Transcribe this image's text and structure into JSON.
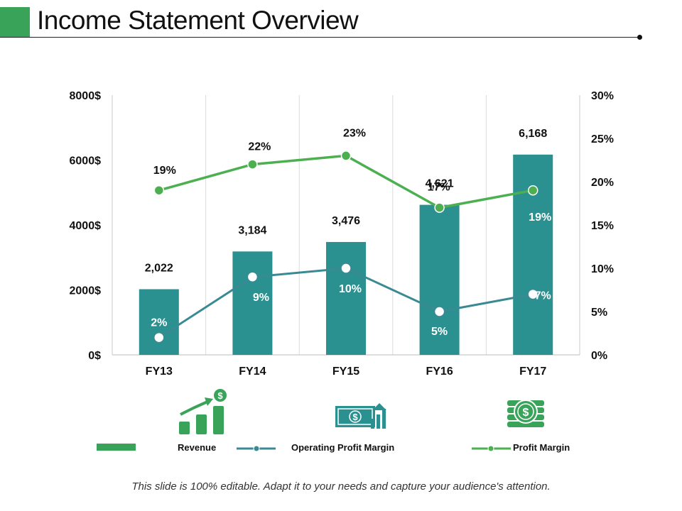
{
  "slide": {
    "title": "Income Statement Overview",
    "footer": "This slide is 100% editable. Adapt it to your needs and capture your audience's attention."
  },
  "colors": {
    "accent_green": "#3aa35a",
    "bar_teal": "#2b9090",
    "operating_line": "#3a8a94",
    "profit_line": "#4caf50"
  },
  "icons": [
    "growth-chart-dollar-icon",
    "dollar-bill-arrow-icon",
    "coin-stack-dollar-icon"
  ],
  "chart_data": {
    "type": "bar",
    "categories": [
      "FY13",
      "FY14",
      "FY15",
      "FY16",
      "FY17"
    ],
    "y_left": {
      "range": [
        0,
        8000
      ],
      "ticks": [
        0,
        2000,
        4000,
        6000,
        8000
      ],
      "tick_labels": [
        "0$",
        "2000$",
        "4000$",
        "6000$",
        "8000$"
      ]
    },
    "y_right": {
      "range": [
        0,
        30
      ],
      "ticks": [
        0,
        5,
        10,
        15,
        20,
        25,
        30
      ],
      "tick_labels": [
        "0%",
        "5%",
        "10%",
        "15%",
        "20%",
        "25%",
        "30%"
      ]
    },
    "grid": "vertical-category-separators",
    "series": [
      {
        "name": "Revenue",
        "type": "bar",
        "axis": "left",
        "values": [
          2022,
          3184,
          3476,
          4621,
          6168
        ],
        "labels": [
          "2,022",
          "3,184",
          "3,476",
          "4,621",
          "6,168"
        ]
      },
      {
        "name": "Operating Profit Margin",
        "type": "line",
        "axis": "right",
        "values": [
          2,
          9,
          10,
          5,
          7
        ],
        "labels": [
          "2%",
          "9%",
          "10%",
          "5%",
          "7%"
        ]
      },
      {
        "name": "Profit Margin",
        "type": "line",
        "axis": "right",
        "values": [
          19,
          22,
          23,
          17,
          19
        ],
        "labels": [
          "19%",
          "22%",
          "23%",
          "17%",
          "19%"
        ]
      }
    ],
    "legend": {
      "placement": "bottom",
      "entries": [
        "Revenue",
        "Operating Profit Margin",
        "Profit Margin"
      ]
    }
  }
}
